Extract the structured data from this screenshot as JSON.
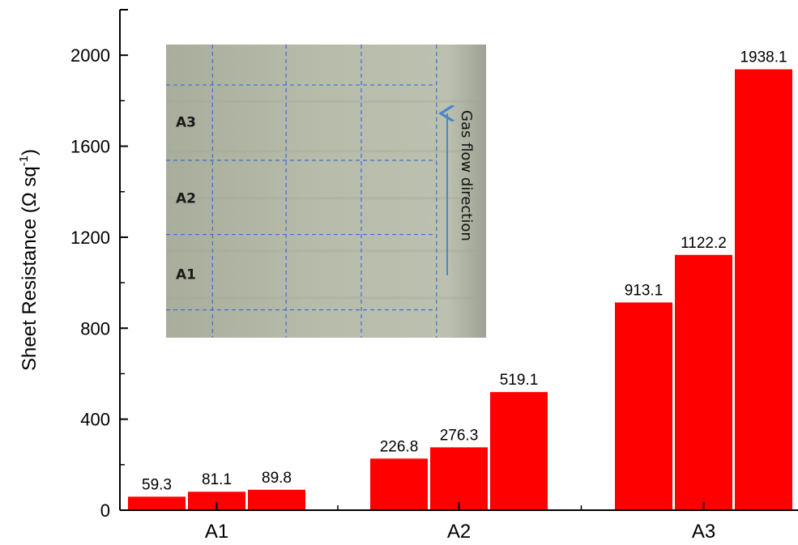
{
  "chart_data": {
    "type": "bar",
    "categories": [
      "A1",
      "A2",
      "A3"
    ],
    "groups": [
      {
        "category": "A1",
        "values": [
          59.3,
          81.1,
          89.8
        ],
        "labels": [
          "59.3",
          "81.1",
          "89.8"
        ]
      },
      {
        "category": "A2",
        "values": [
          226.8,
          276.3,
          519.1
        ],
        "labels": [
          "226.8",
          "276.3",
          "519.1"
        ]
      },
      {
        "category": "A3",
        "values": [
          913.1,
          1122.2,
          1938.1
        ],
        "labels": [
          "913.1",
          "1122.2",
          "1938.1"
        ]
      }
    ],
    "ylabel": "Sheet Resistance (Ω sq",
    "ylabel_superscript": "-1",
    "ylabel_close": ")",
    "ylim": [
      0,
      2200
    ],
    "yticks": [
      0,
      400,
      800,
      1200,
      1600,
      2000
    ],
    "ytick_labels": [
      "0",
      "400",
      "800",
      "1200",
      "1600",
      "2000"
    ],
    "bar_color": "#ff0000",
    "grid": false,
    "inset": {
      "region_labels": [
        "A3",
        "A2",
        "A1"
      ],
      "annotation": "Gas flow direction",
      "grid_line_color": "#3b6fd8",
      "arrow_color": "#4a86c8",
      "photo_color": "#b8bcaa"
    }
  }
}
